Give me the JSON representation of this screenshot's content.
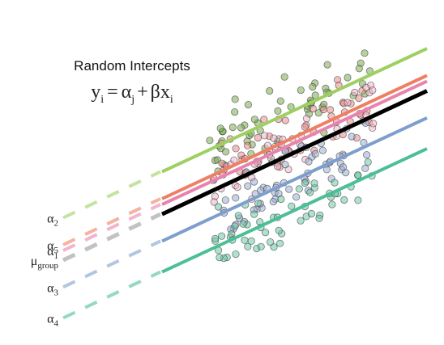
{
  "chart_data": {
    "type": "scatter",
    "title": "Random Intercepts",
    "equation": {
      "lhs_base": "y",
      "lhs_sub": "i",
      "eq": "=",
      "alpha": "α",
      "alpha_sub": "j",
      "plus": "+",
      "beta_x": "βx",
      "x_sub": "i"
    },
    "xlabel": "",
    "ylabel": "",
    "grid": false,
    "x_range": [
      0,
      100
    ],
    "y_range": [
      -6,
      80
    ],
    "slope": 0.32,
    "group_line": {
      "label": "μ",
      "label_sub": "group",
      "intercept": 26.5,
      "color": "#000000",
      "dashed_color": "#999999"
    },
    "series": [
      {
        "label": "α",
        "label_sub": "2",
        "intercept": 37.5,
        "color": "#9dd061",
        "point_fill": "#7aab4e",
        "spread": 8,
        "n": 60,
        "seed": 2
      },
      {
        "label": "α",
        "label_sub": "5",
        "intercept": 30.5,
        "color": "#ee7f63",
        "point_fill": "#e98b8b",
        "spread": 8,
        "n": 55,
        "seed": 5
      },
      {
        "label": "α",
        "label_sub": "1",
        "intercept": 29.0,
        "color": "#e883ad",
        "point_fill": "#f0b7c9",
        "spread": 7,
        "n": 45,
        "seed": 1
      },
      {
        "label": "α",
        "label_sub": "3",
        "intercept": 19.5,
        "color": "#7e9ecd",
        "point_fill": "#9aafd4",
        "spread": 8,
        "n": 60,
        "seed": 3
      },
      {
        "label": "α",
        "label_sub": "4",
        "intercept": 11.5,
        "color": "#4cbf96",
        "point_fill": "#6ccaa5",
        "spread": 8,
        "n": 60,
        "seed": 4
      }
    ]
  }
}
